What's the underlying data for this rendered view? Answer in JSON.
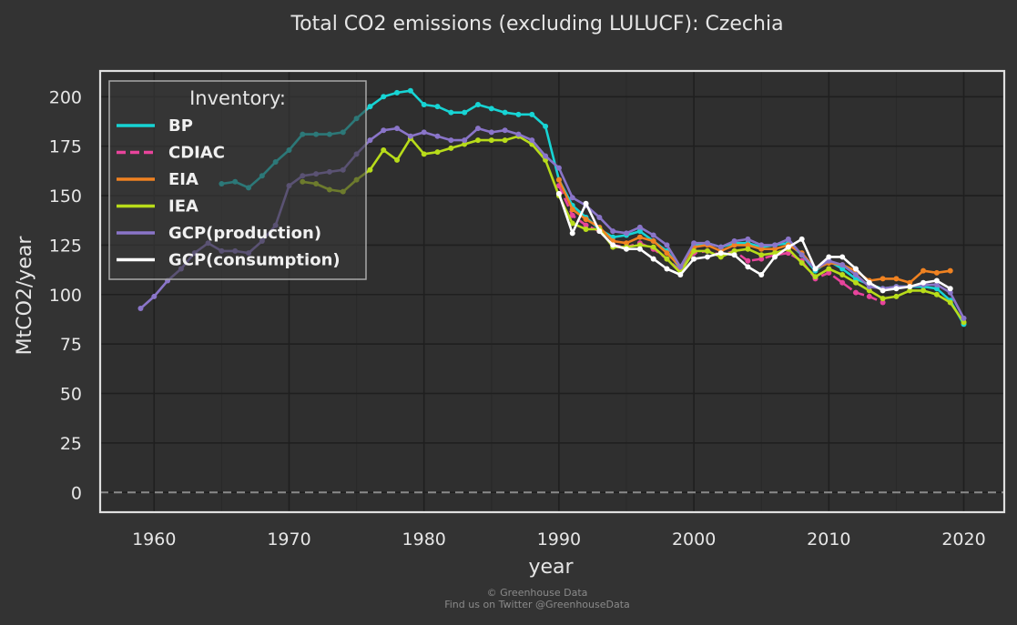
{
  "chart_data": {
    "type": "line",
    "title": "Total CO2 emissions (excluding LULUCF): Czechia",
    "xlabel": "year",
    "ylabel": "MtCO2/year",
    "xlim": [
      1956,
      2023
    ],
    "ylim": [
      -10,
      213
    ],
    "xticks": [
      1960,
      1970,
      1980,
      1990,
      2000,
      2010,
      2020
    ],
    "yticks": [
      0,
      25,
      50,
      75,
      100,
      125,
      150,
      175,
      200
    ],
    "grid": true,
    "zero_line": {
      "y": 0,
      "style": "dashed",
      "color": "#8a8a8a"
    },
    "legend": {
      "title": "Inventory:",
      "placement": "top-left"
    },
    "series": [
      {
        "name": "BP",
        "color": "#17d4d4",
        "dash": "solid",
        "x": [
          1965,
          1966,
          1967,
          1968,
          1969,
          1970,
          1971,
          1972,
          1973,
          1974,
          1975,
          1976,
          1977,
          1978,
          1979,
          1980,
          1981,
          1982,
          1983,
          1984,
          1985,
          1986,
          1987,
          1988,
          1989,
          1990,
          1991,
          1992,
          1993,
          1994,
          1995,
          1996,
          1997,
          1998,
          1999,
          2000,
          2001,
          2002,
          2003,
          2004,
          2005,
          2006,
          2007,
          2008,
          2009,
          2010,
          2011,
          2012,
          2013,
          2014,
          2015,
          2016,
          2017,
          2018,
          2019,
          2020
        ],
        "y": [
          156,
          157,
          154,
          160,
          167,
          173,
          181,
          181,
          181,
          182,
          189,
          195,
          200,
          202,
          203,
          196,
          195,
          192,
          192,
          196,
          194,
          192,
          191,
          191,
          185,
          158,
          145,
          139,
          133,
          129,
          130,
          132,
          127,
          122,
          113,
          125,
          126,
          124,
          126,
          126,
          124,
          125,
          126,
          120,
          112,
          117,
          113,
          108,
          105,
          103,
          104,
          104,
          104,
          103,
          97,
          85
        ]
      },
      {
        "name": "CDIAC",
        "color": "#e8449c",
        "dash": "dashed",
        "x": [
          1990,
          1991,
          1992,
          1993,
          1994,
          1995,
          1996,
          1997,
          1998,
          1999,
          2000,
          2001,
          2002,
          2003,
          2004,
          2005,
          2006,
          2007,
          2008,
          2009,
          2010,
          2011,
          2012,
          2013,
          2014
        ],
        "y": [
          155,
          140,
          135,
          132,
          125,
          124,
          126,
          123,
          118,
          112,
          121,
          122,
          120,
          122,
          117,
          118,
          120,
          121,
          117,
          108,
          111,
          106,
          101,
          99,
          96
        ]
      },
      {
        "name": "EIA",
        "color": "#f08221",
        "dash": "solid",
        "x": [
          1990,
          1991,
          1992,
          1993,
          1994,
          1995,
          1996,
          1997,
          1998,
          1999,
          2000,
          2001,
          2002,
          2003,
          2004,
          2005,
          2006,
          2007,
          2008,
          2009,
          2010,
          2011,
          2012,
          2013,
          2014,
          2015,
          2016,
          2017,
          2018,
          2019
        ],
        "y": [
          158,
          143,
          138,
          134,
          127,
          126,
          129,
          127,
          121,
          114,
          124,
          125,
          122,
          125,
          125,
          123,
          123,
          125,
          121,
          113,
          116,
          115,
          112,
          107,
          108,
          108,
          106,
          112,
          111,
          112
        ]
      },
      {
        "name": "IEA",
        "color": "#b8dc1a",
        "dash": "solid",
        "x": [
          1971,
          1972,
          1973,
          1974,
          1975,
          1976,
          1977,
          1978,
          1979,
          1980,
          1981,
          1982,
          1983,
          1984,
          1985,
          1986,
          1987,
          1988,
          1989,
          1990,
          1991,
          1992,
          1993,
          1994,
          1995,
          1996,
          1997,
          1998,
          1999,
          2000,
          2001,
          2002,
          2003,
          2004,
          2005,
          2006,
          2007,
          2008,
          2009,
          2010,
          2011,
          2012,
          2013,
          2014,
          2015,
          2016,
          2017,
          2018,
          2019,
          2020
        ],
        "y": [
          157,
          156,
          153,
          152,
          158,
          163,
          173,
          168,
          179,
          171,
          172,
          174,
          176,
          178,
          178,
          178,
          180,
          176,
          168,
          150,
          136,
          133,
          133,
          124,
          124,
          125,
          124,
          118,
          111,
          122,
          122,
          119,
          122,
          123,
          120,
          121,
          123,
          116,
          109,
          113,
          110,
          106,
          102,
          98,
          99,
          102,
          102,
          100,
          96,
          86
        ]
      },
      {
        "name": "GCP(production)",
        "color": "#8a75c9",
        "dash": "solid",
        "x": [
          1959,
          1960,
          1961,
          1962,
          1963,
          1964,
          1965,
          1966,
          1967,
          1968,
          1969,
          1970,
          1971,
          1972,
          1973,
          1974,
          1975,
          1976,
          1977,
          1978,
          1979,
          1980,
          1981,
          1982,
          1983,
          1984,
          1985,
          1986,
          1987,
          1988,
          1989,
          1990,
          1991,
          1992,
          1993,
          1994,
          1995,
          1996,
          1997,
          1998,
          1999,
          2000,
          2001,
          2002,
          2003,
          2004,
          2005,
          2006,
          2007,
          2008,
          2009,
          2010,
          2011,
          2012,
          2013,
          2014,
          2015,
          2016,
          2017,
          2018,
          2019,
          2020
        ],
        "y": [
          93,
          99,
          107,
          113,
          121,
          126,
          122,
          122,
          121,
          127,
          135,
          155,
          160,
          161,
          162,
          163,
          171,
          178,
          183,
          184,
          180,
          182,
          180,
          178,
          178,
          184,
          182,
          183,
          181,
          178,
          170,
          164,
          149,
          145,
          139,
          132,
          131,
          134,
          130,
          125,
          114,
          126,
          126,
          124,
          127,
          128,
          125,
          125,
          128,
          120,
          113,
          117,
          115,
          110,
          104,
          103,
          104,
          104,
          105,
          105,
          101,
          88
        ]
      },
      {
        "name": "GCP(consumption)",
        "color": "#ffffff",
        "dash": "solid",
        "x": [
          1990,
          1991,
          1992,
          1993,
          1994,
          1995,
          1996,
          1997,
          1998,
          1999,
          2000,
          2001,
          2002,
          2003,
          2004,
          2005,
          2006,
          2007,
          2008,
          2009,
          2010,
          2011,
          2012,
          2013,
          2014,
          2015,
          2016,
          2017,
          2018,
          2019
        ],
        "y": [
          151,
          131,
          146,
          132,
          125,
          123,
          123,
          118,
          113,
          110,
          118,
          119,
          121,
          120,
          114,
          110,
          119,
          124,
          128,
          113,
          119,
          119,
          113,
          106,
          102,
          103,
          104,
          106,
          107,
          103
        ]
      }
    ]
  },
  "credits": {
    "line1": "© Greenhouse Data",
    "line2": "Find us on Twitter @GreenhouseData"
  }
}
